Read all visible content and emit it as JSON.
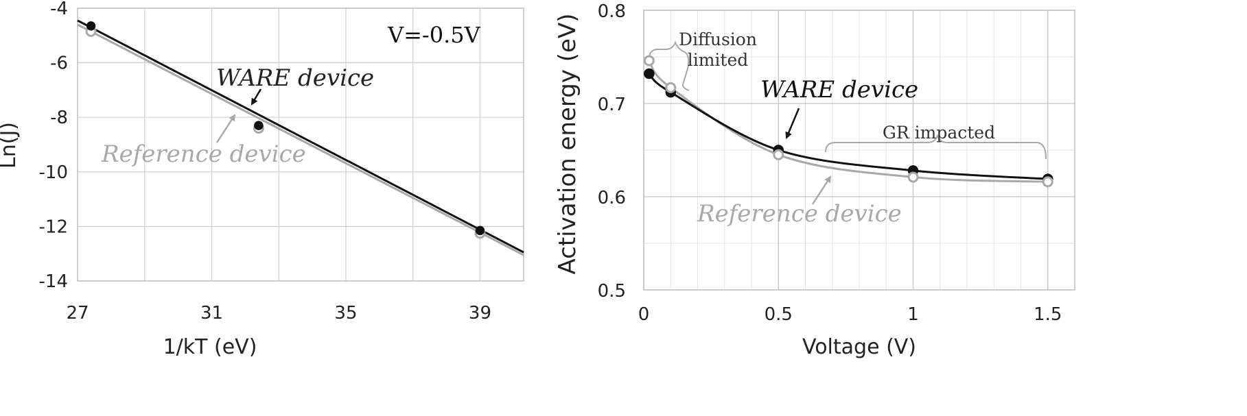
{
  "chart_data": [
    {
      "type": "scatter",
      "xlabel": "1/kT (eV)",
      "ylabel": "Ln(J)",
      "xlim": [
        27,
        40.3
      ],
      "ylim": [
        -14,
        -4
      ],
      "xticks": [
        "27",
        "31",
        "35",
        "39"
      ],
      "yticks": [
        "-4",
        "-6",
        "-8",
        "-10",
        "-12",
        "-14"
      ],
      "grid": true,
      "annotations": {
        "condition": "V=-0.5V",
        "ware_label": "WARE device",
        "reference_label": "Reference device"
      },
      "series": [
        {
          "name": "WARE device",
          "color": "#111111",
          "points": [
            [
              27.4,
              -4.65
            ],
            [
              32.4,
              -8.3
            ],
            [
              39.0,
              -12.15
            ]
          ],
          "fit": [
            [
              27,
              -4.45
            ],
            [
              40.3,
              -12.95
            ]
          ]
        },
        {
          "name": "Reference device",
          "color": "#a8a8a8",
          "points": [
            [
              27.4,
              -4.85
            ],
            [
              32.4,
              -8.4
            ],
            [
              39.0,
              -12.25
            ]
          ],
          "fit": [
            [
              27,
              -4.6
            ],
            [
              40.3,
              -13.05
            ]
          ]
        }
      ]
    },
    {
      "type": "line",
      "xlabel": "Voltage (V)",
      "ylabel": "Activation energy (eV)",
      "xlim": [
        0,
        1.6
      ],
      "ylim": [
        0.5,
        0.8
      ],
      "xticks": [
        "0",
        "0.5",
        "1",
        "1.5"
      ],
      "yticks": [
        "0.8",
        "0.7",
        "0.6",
        "0.5"
      ],
      "grid": true,
      "annotations": {
        "diffusion_line1": "Diffusion",
        "diffusion_line2": "limited",
        "gr": "GR impacted",
        "ware_label": "WARE device",
        "reference_label": "Reference device"
      },
      "series": [
        {
          "name": "WARE device",
          "color": "#111111",
          "x": [
            0.02,
            0.1,
            0.5,
            1.0,
            1.5
          ],
          "y": [
            0.732,
            0.712,
            0.65,
            0.628,
            0.619
          ]
        },
        {
          "name": "Reference device",
          "color": "#a8a8a8",
          "x": [
            0.02,
            0.1,
            0.5,
            1.0,
            1.5
          ],
          "y": [
            0.746,
            0.717,
            0.645,
            0.621,
            0.616
          ]
        }
      ]
    }
  ]
}
